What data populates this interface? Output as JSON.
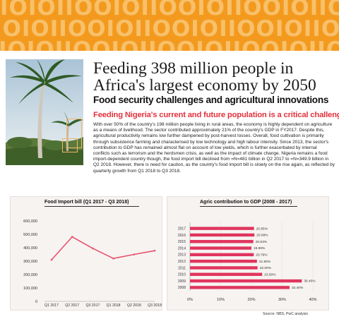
{
  "banner": {
    "pattern_text": "IOIOIIOOIOIIOOIOIIOOIOIIOOIOIIOOIO",
    "color": "#f39a1e",
    "pattern_color": "#f8c06a"
  },
  "header": {
    "title": "Feeding 398 million people in Africa's largest economy by 2050",
    "subtitle": "Food security challenges and agricultural innovations"
  },
  "section": {
    "heading": "Feeding Nigeria's current and future population is a critical challenge",
    "body": "With over 50% of the country's 198 million people living in rural areas, the economy is highly dependent on agriculture as a means of livelihood. The sector contributed approximately 21% of the country's GDP in FY2017. Despite this, agricultural productivity remains low further dampened by post-harvest losses. Overall, food cultivation is primarily through subsistence farming and characterised by low technology and high labour intensity. Since 2013, the sector's contribution to GDP has remained almost flat on account of low yields, which is  further exacerbated by internal conflicts such as terrorism and the herdsmen crisis, as well as the impact of climate change. Nigeria remains a food import-dependent country though, the food import bill declined from =N=481 billion in Q2 2017 to =N=349.9 billion in Q2 2018. However, there is need for caution, as the country's food import bill is slowly on the rise again, as reflected by quarterly growth from Q1 2018 to Q3 2018."
  },
  "chart_data": [
    {
      "type": "line",
      "title": "Food Import bill (Q1 2017 - Q3 2018)",
      "categories": [
        "Q1 2017",
        "Q2 2017",
        "Q3 2017",
        "Q1 2018",
        "Q2 2018",
        "Q3 2018"
      ],
      "values": [
        310000,
        481000,
        395000,
        320000,
        349900,
        378000
      ],
      "yticks": [
        "600,000",
        "500,000",
        "400,000",
        "300,000",
        "200,000",
        "100,000",
        "0"
      ],
      "ylim": [
        0,
        600000
      ],
      "xlabel": "",
      "ylabel": "",
      "line_color": "#e8526d",
      "grid": false
    },
    {
      "type": "bar",
      "orientation": "horizontal",
      "title": "Agric contribution to GDP (2008 - 2017)",
      "categories": [
        "2017",
        "2016",
        "2015",
        "2014",
        "2013",
        "2012",
        "2011",
        "2010",
        "2009",
        "2008"
      ],
      "values": [
        20.85,
        20.98,
        20.63,
        19.99,
        20.76,
        21.8,
        22.0,
        23.5,
        36.4,
        32.4
      ],
      "labels": [
        "20.85%",
        "20.98%",
        "20.63%",
        "19.99%",
        "20.76%",
        "21.80%",
        "22.00%",
        "23.50%",
        "36.40%",
        "32.40%"
      ],
      "xticks": [
        "0%",
        "10%",
        "20%",
        "30%",
        "40%"
      ],
      "xlim": [
        0,
        40
      ],
      "bar_color": "#e0355e",
      "grid": true
    }
  ],
  "source": "Source: NBS, PwC analysis"
}
